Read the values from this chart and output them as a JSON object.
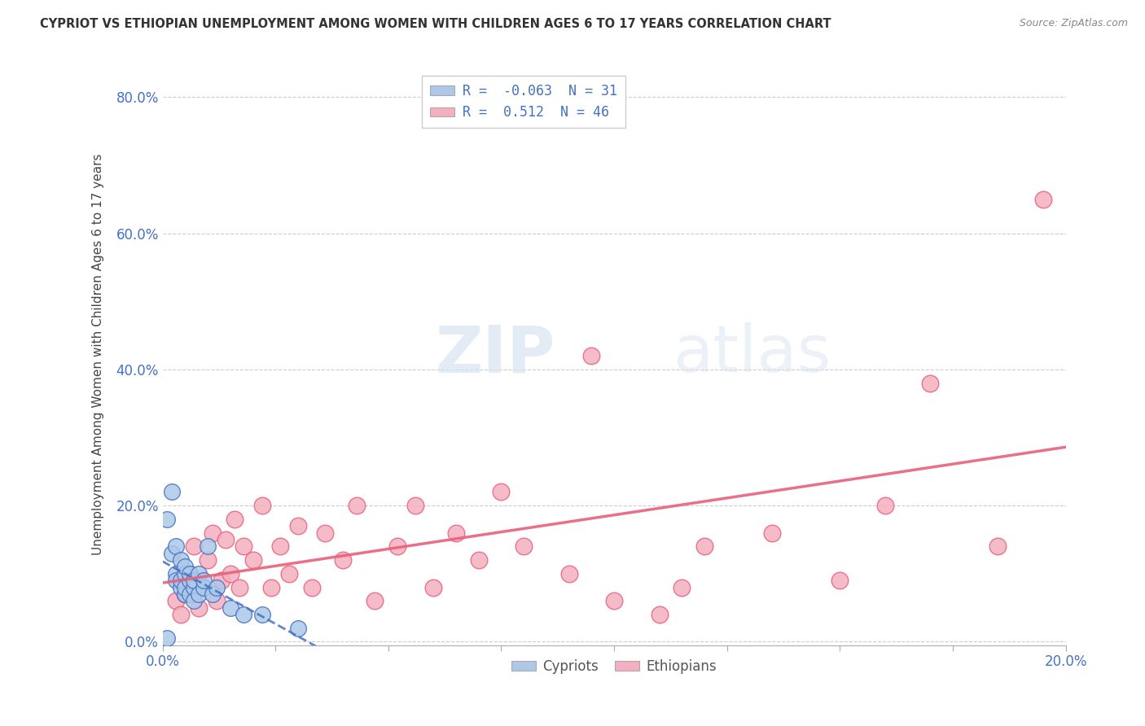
{
  "title": "CYPRIOT VS ETHIOPIAN UNEMPLOYMENT AMONG WOMEN WITH CHILDREN AGES 6 TO 17 YEARS CORRELATION CHART",
  "source": "Source: ZipAtlas.com",
  "ylabel": "Unemployment Among Women with Children Ages 6 to 17 years",
  "legend_cypriots": "Cypriots",
  "legend_ethiopians": "Ethiopians",
  "R_cypriot": -0.063,
  "N_cypriot": 31,
  "R_ethiopian": 0.512,
  "N_ethiopian": 46,
  "cypriot_color": "#adc8e8",
  "ethiopian_color": "#f5afc0",
  "cypriot_line_color": "#4472c4",
  "ethiopian_line_color": "#e8607a",
  "xlim": [
    0,
    0.2
  ],
  "ylim": [
    -0.005,
    0.85
  ],
  "xtick_positions": [
    0.0,
    0.025,
    0.05,
    0.075,
    0.1,
    0.125,
    0.15,
    0.175,
    0.2
  ],
  "xtick_labels_show": {
    "0.0": "0.0%",
    "0.20": "20.0%"
  },
  "ytick_positions": [
    0.0,
    0.2,
    0.4,
    0.6,
    0.8
  ],
  "ytick_labels": [
    "0.0%",
    "20.0%",
    "40.0%",
    "60.0%",
    "80.0%"
  ],
  "background_color": "#ffffff",
  "watermark_zip": "ZIP",
  "watermark_atlas": "atlas",
  "cypriot_x": [
    0.001,
    0.001,
    0.002,
    0.002,
    0.003,
    0.003,
    0.003,
    0.004,
    0.004,
    0.004,
    0.005,
    0.005,
    0.005,
    0.005,
    0.006,
    0.006,
    0.006,
    0.007,
    0.007,
    0.007,
    0.008,
    0.008,
    0.009,
    0.009,
    0.01,
    0.011,
    0.012,
    0.015,
    0.018,
    0.022,
    0.03
  ],
  "cypriot_y": [
    0.005,
    0.18,
    0.22,
    0.13,
    0.1,
    0.09,
    0.14,
    0.08,
    0.09,
    0.12,
    0.07,
    0.1,
    0.08,
    0.11,
    0.07,
    0.09,
    0.1,
    0.08,
    0.06,
    0.09,
    0.07,
    0.1,
    0.08,
    0.09,
    0.14,
    0.07,
    0.08,
    0.05,
    0.04,
    0.04,
    0.02
  ],
  "ethiopian_x": [
    0.003,
    0.004,
    0.005,
    0.006,
    0.007,
    0.008,
    0.009,
    0.01,
    0.011,
    0.012,
    0.013,
    0.014,
    0.015,
    0.016,
    0.017,
    0.018,
    0.02,
    0.022,
    0.024,
    0.026,
    0.028,
    0.03,
    0.033,
    0.036,
    0.04,
    0.043,
    0.047,
    0.052,
    0.056,
    0.06,
    0.065,
    0.07,
    0.075,
    0.08,
    0.09,
    0.095,
    0.1,
    0.11,
    0.115,
    0.12,
    0.135,
    0.15,
    0.16,
    0.17,
    0.185,
    0.195
  ],
  "ethiopian_y": [
    0.06,
    0.04,
    0.07,
    0.1,
    0.14,
    0.05,
    0.08,
    0.12,
    0.16,
    0.06,
    0.09,
    0.15,
    0.1,
    0.18,
    0.08,
    0.14,
    0.12,
    0.2,
    0.08,
    0.14,
    0.1,
    0.17,
    0.08,
    0.16,
    0.12,
    0.2,
    0.06,
    0.14,
    0.2,
    0.08,
    0.16,
    0.12,
    0.22,
    0.14,
    0.1,
    0.42,
    0.06,
    0.04,
    0.08,
    0.14,
    0.16,
    0.09,
    0.2,
    0.38,
    0.14,
    0.65
  ]
}
